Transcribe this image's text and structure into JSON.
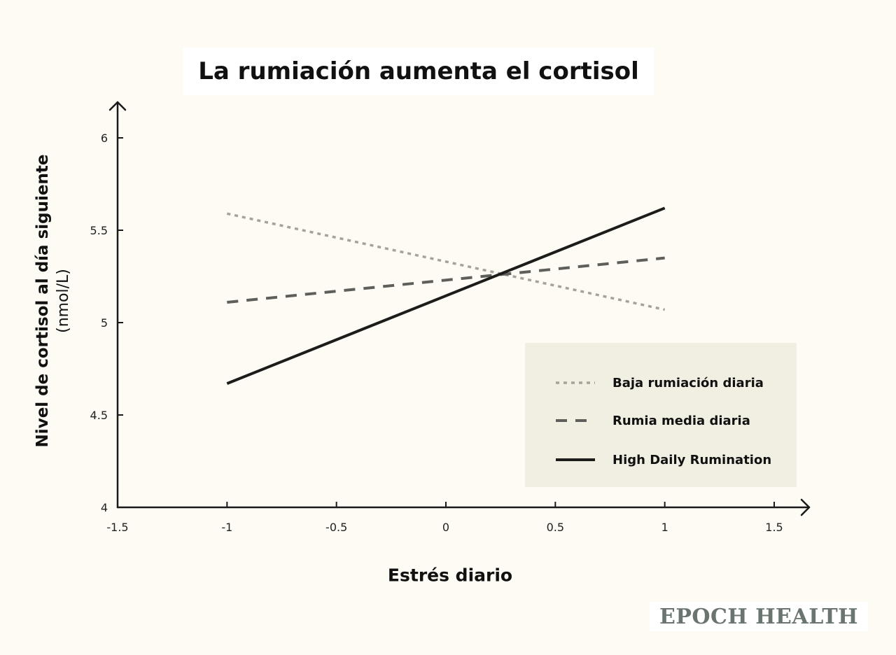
{
  "chart_data": {
    "type": "line",
    "title": "La rumiación aumenta el cortisol",
    "xlabel": "Estrés diario",
    "ylabel": "Nivel de cortisol al día siguiente",
    "ylabel_unit": "(nmol/L)",
    "xlim": [
      -1.5,
      1.5
    ],
    "ylim": [
      4,
      6
    ],
    "xticks": [
      "-1.5",
      "-1",
      "-0.5",
      "0",
      "0.5",
      "1",
      "1.5"
    ],
    "yticks": [
      "4",
      "4.5",
      "5",
      "5.5",
      "6"
    ],
    "grid": false,
    "legend_position": "bottom-right",
    "series": [
      {
        "name": "Baja rumiación diaria",
        "style": "dotted",
        "color": "#a3a39c",
        "x": [
          -1,
          1
        ],
        "y": [
          5.59,
          5.07
        ]
      },
      {
        "name": "Rumia media diaria",
        "style": "dashed",
        "color": "#5e5e5a",
        "x": [
          -1,
          1
        ],
        "y": [
          5.11,
          5.35
        ]
      },
      {
        "name": "High Daily Rumination",
        "style": "solid",
        "color": "#1c1c1a",
        "x": [
          -1,
          1
        ],
        "y": [
          4.67,
          5.62
        ]
      }
    ]
  },
  "brand": {
    "name": "EPOCH HEALTH"
  }
}
